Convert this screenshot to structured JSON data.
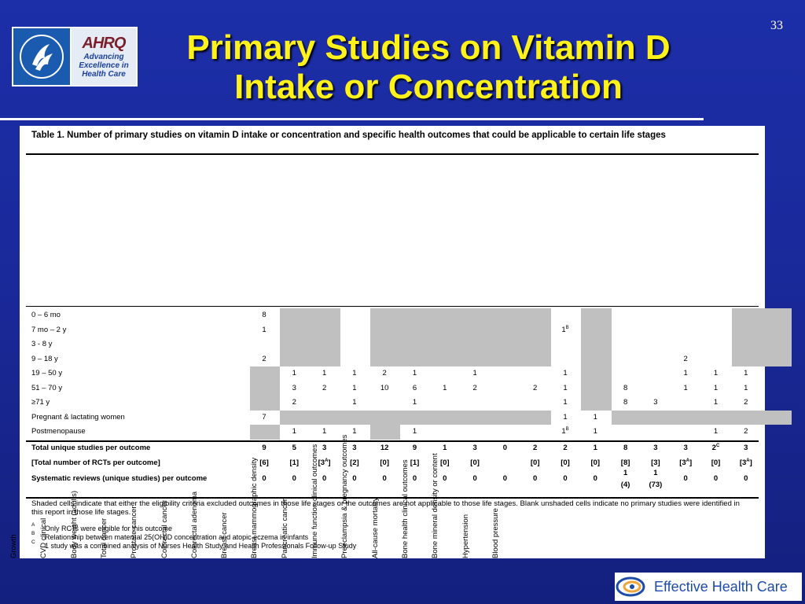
{
  "slide_number": "33",
  "logo": {
    "ahrq_text": "AHRQ",
    "ahrq_tagline": "Advancing Excellence in Health Care"
  },
  "title": {
    "line1": "Primary Studies on Vitamin D",
    "line2": "Intake or Concentration"
  },
  "table": {
    "caption": "Table 1. Number of primary studies on vitamin D intake or concentration and specific health outcomes that could be applicable to certain life stages",
    "columns": [
      "Growth",
      "CVD clinical",
      "Body weight (adults)",
      "Total cancer",
      "Prostate cancer",
      "Colorectal cancer",
      "Colorectal adenoma",
      "Breast cancer",
      "Breast mammographic density",
      "Pancreatic cancer",
      "Immune function clinical outcomes",
      "Preeclampsia & pregnancy outcomes",
      "All-cause mortality",
      "Bone health clinical outcomes",
      "Bone mineral density or content",
      "Hypertension",
      "Blood pressure"
    ],
    "rows": [
      {
        "label": "0 – 6 mo",
        "cells": [
          "8",
          "",
          "",
          "",
          "",
          "",
          "",
          "",
          "",
          "",
          "",
          "",
          "",
          "",
          "",
          "",
          ""
        ]
      },
      {
        "label": "7 mo – 2 y",
        "cells": [
          "1",
          "",
          "",
          "",
          "",
          "",
          "",
          "",
          "",
          "",
          "1B",
          "",
          "",
          "",
          "",
          "",
          ""
        ]
      },
      {
        "label": "3 - 8 y",
        "cells": [
          "",
          "",
          "",
          "",
          "",
          "",
          "",
          "",
          "",
          "",
          "",
          "",
          "",
          "",
          "",
          "",
          ""
        ]
      },
      {
        "label": "9 – 18 y",
        "cells": [
          "2",
          "",
          "",
          "",
          "",
          "",
          "",
          "",
          "",
          "",
          "",
          "",
          "",
          "",
          "2",
          "",
          ""
        ]
      },
      {
        "label": "19 – 50 y",
        "cells": [
          "",
          "1",
          "1",
          "1",
          "2",
          "1",
          "",
          "1",
          "",
          "",
          "1",
          "",
          "",
          "",
          "1",
          "1",
          "1"
        ]
      },
      {
        "label": "51 – 70 y",
        "cells": [
          "",
          "3",
          "2",
          "1",
          "10",
          "6",
          "1",
          "2",
          "",
          "2",
          "1",
          "",
          "8",
          "",
          "1",
          "1",
          "1"
        ]
      },
      {
        "label": "≥71 y",
        "cells": [
          "",
          "2",
          "",
          "1",
          "",
          "1",
          "",
          "",
          "",
          "",
          "1",
          "",
          "8",
          "3",
          "",
          "1",
          "2"
        ]
      },
      {
        "label": "Pregnant & lactating women",
        "cells": [
          "7",
          "",
          "",
          "",
          "",
          "",
          "",
          "",
          "",
          "",
          "1",
          "1",
          "",
          "",
          "",
          "",
          ""
        ]
      },
      {
        "label": "Postmenopause",
        "cells": [
          "",
          "1",
          "1",
          "1",
          "",
          "1",
          "",
          "",
          "",
          "",
          "1B",
          "1",
          "",
          "",
          "",
          "1",
          "2"
        ]
      }
    ],
    "summary_rows": [
      {
        "label": "Total unique studies per outcome",
        "cells": [
          "9",
          "5",
          "3",
          "3",
          "12",
          "9",
          "1",
          "3",
          "0",
          "2",
          "2",
          "1",
          "8",
          "3",
          "3",
          "2C",
          "3"
        ]
      },
      {
        "label": "[Total number of RCTs per outcome]",
        "cells": [
          "[6]",
          "[1]",
          "[3A]",
          "[2]",
          "[0]",
          "[1]",
          "[0]",
          "[0]",
          "",
          "[0]",
          "[0]",
          "[0]",
          "[8]",
          "[3]",
          "[3A]",
          "[0]",
          "[3A]"
        ]
      },
      {
        "label": "Systematic reviews (unique studies) per outcome",
        "cells": [
          "0",
          "0",
          "0",
          "0",
          "0",
          "0",
          "0",
          "0",
          "0",
          "0",
          "0",
          "0",
          "1",
          "1",
          "0",
          "0",
          "0"
        ],
        "sub": [
          "",
          "",
          "",
          "",
          "",
          "",
          "",
          "",
          "",
          "",
          "",
          "",
          "(4)",
          "(73)",
          "",
          "",
          ""
        ]
      }
    ],
    "note": "Shaded cells indicate that either the eligibility criteria excluded outcomes in those life stages or the outcomes are not applicable to those life stages. Blank unshaded cells indicate no primary studies were identified in this report in those life stages.",
    "footnotes": [
      {
        "mark": "A",
        "text": "Only RCTs were eligible for this outcome"
      },
      {
        "mark": "B",
        "text": "Relationship between maternal 25(OH)D concentration and atopic eczema in infants"
      },
      {
        "mark": "C",
        "text": "1 study was a combined analysis of Nurses Health Study and Health Professionals Follow-up Study"
      }
    ]
  },
  "footer_logo": {
    "text": "Effective Health Care"
  }
}
